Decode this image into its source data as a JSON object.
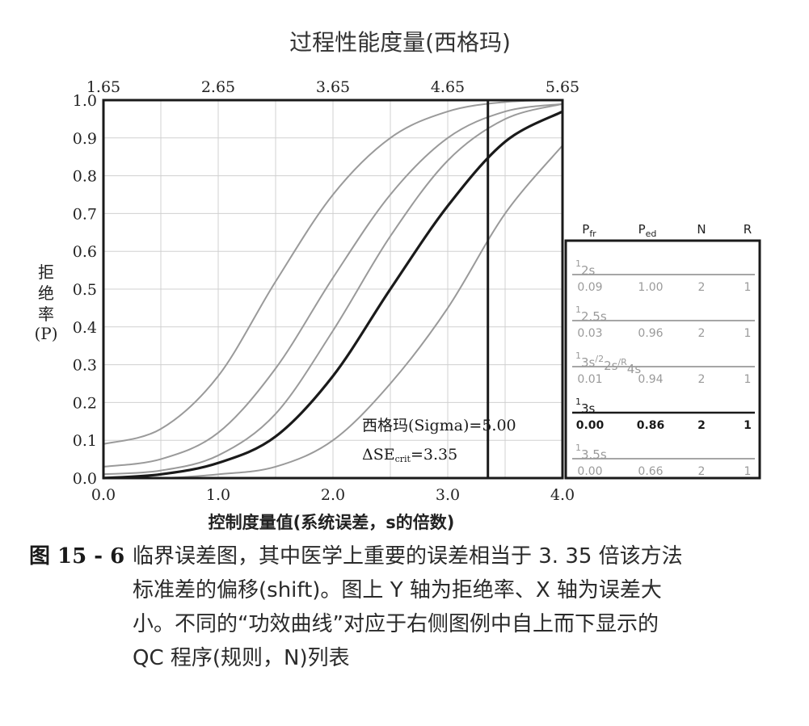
{
  "figure": {
    "top_title": "过程性能度量(西格玛)",
    "top_ticks": [
      "1.65",
      "2.65",
      "3.65",
      "4.65",
      "5.65"
    ],
    "ylabel_lines": [
      "拒",
      "绝",
      "率",
      "(P)"
    ],
    "xlabel": "控制度量值(系统误差，s的倍数)",
    "annotation_line1": "西格玛(Sigma)=5.00",
    "annotation_line2_main": "ΔSE",
    "annotation_line2_sub": "crit",
    "annotation_line2_tail": "=3.35",
    "legend": {
      "headers": [
        {
          "main": "P",
          "sub": "fr"
        },
        {
          "main": "P",
          "sub": "ed"
        },
        {
          "main": "N",
          "sub": ""
        },
        {
          "main": "R",
          "sub": ""
        }
      ],
      "rows": [
        {
          "rule": "1_2s",
          "pfr": "0.09",
          "ped": "1.00",
          "n": "2",
          "r": "1",
          "highlight": false
        },
        {
          "rule": "1_2.5s",
          "pfr": "0.03",
          "ped": "0.96",
          "n": "2",
          "r": "1",
          "highlight": false
        },
        {
          "rule": "1_3s/2_2s/R_4s",
          "pfr": "0.01",
          "ped": "0.94",
          "n": "2",
          "r": "1",
          "highlight": false
        },
        {
          "rule": "1_3s",
          "pfr": "0.00",
          "ped": "0.86",
          "n": "2",
          "r": "1",
          "highlight": true
        },
        {
          "rule": "1_3.5s",
          "pfr": "0.00",
          "ped": "0.66",
          "n": "2",
          "r": "1",
          "highlight": false
        }
      ]
    },
    "colors": {
      "highlight": "#1a1a1a",
      "faded": "#9a9a9a",
      "grid": "#d0d0d0"
    }
  },
  "chart_data": {
    "type": "line",
    "xlabel": "控制度量值(系统误差，s的倍数)",
    "ylabel": "拒绝率(P)",
    "top_axis_label": "过程性能度量(西格玛)",
    "xlim": [
      0.0,
      4.0
    ],
    "ylim": [
      0.0,
      1.0
    ],
    "x_ticks": [
      "0.0",
      "1.0",
      "2.0",
      "3.0",
      "4.0"
    ],
    "y_ticks": [
      "0.0",
      "0.1",
      "0.2",
      "0.3",
      "0.4",
      "0.5",
      "0.6",
      "0.7",
      "0.8",
      "0.9",
      "1.0"
    ],
    "grid": true,
    "critical_x": 3.35,
    "series": [
      {
        "name": "1_2s",
        "points": [
          [
            0,
            0.09
          ],
          [
            0.5,
            0.13
          ],
          [
            1,
            0.27
          ],
          [
            1.5,
            0.52
          ],
          [
            2,
            0.75
          ],
          [
            2.5,
            0.9
          ],
          [
            3,
            0.97
          ],
          [
            3.5,
            0.995
          ],
          [
            4,
            1.0
          ]
        ]
      },
      {
        "name": "1_2.5s",
        "points": [
          [
            0,
            0.03
          ],
          [
            0.5,
            0.05
          ],
          [
            1,
            0.12
          ],
          [
            1.5,
            0.29
          ],
          [
            2,
            0.53
          ],
          [
            2.5,
            0.75
          ],
          [
            3,
            0.9
          ],
          [
            3.5,
            0.97
          ],
          [
            4,
            0.99
          ]
        ]
      },
      {
        "name": "1_3s/2_2s/R_4s",
        "points": [
          [
            0,
            0.01
          ],
          [
            0.5,
            0.02
          ],
          [
            1,
            0.06
          ],
          [
            1.5,
            0.17
          ],
          [
            2,
            0.39
          ],
          [
            2.5,
            0.64
          ],
          [
            3,
            0.84
          ],
          [
            3.5,
            0.95
          ],
          [
            4,
            0.99
          ]
        ]
      },
      {
        "name": "1_3s",
        "points": [
          [
            0,
            0.0
          ],
          [
            0.5,
            0.01
          ],
          [
            1,
            0.04
          ],
          [
            1.5,
            0.11
          ],
          [
            2,
            0.27
          ],
          [
            2.5,
            0.5
          ],
          [
            3,
            0.72
          ],
          [
            3.5,
            0.89
          ],
          [
            4,
            0.97
          ]
        ]
      },
      {
        "name": "1_3.5s",
        "points": [
          [
            0,
            0.0
          ],
          [
            0.5,
            0.0
          ],
          [
            1,
            0.01
          ],
          [
            1.5,
            0.03
          ],
          [
            2,
            0.1
          ],
          [
            2.5,
            0.25
          ],
          [
            3,
            0.45
          ],
          [
            3.5,
            0.7
          ],
          [
            4,
            0.88
          ]
        ]
      }
    ]
  },
  "caption": {
    "number": "图 15 - 6",
    "lines": [
      "临界误差图，其中医学上重要的误差相当于 3. 35 倍该方法",
      "标准差的偏移(shift)。图上 Y 轴为拒绝率、X 轴为误差大",
      "小。不同的“功效曲线”对应于右侧图例中自上而下显示的",
      "QC 程序(规则，N)列表"
    ]
  }
}
